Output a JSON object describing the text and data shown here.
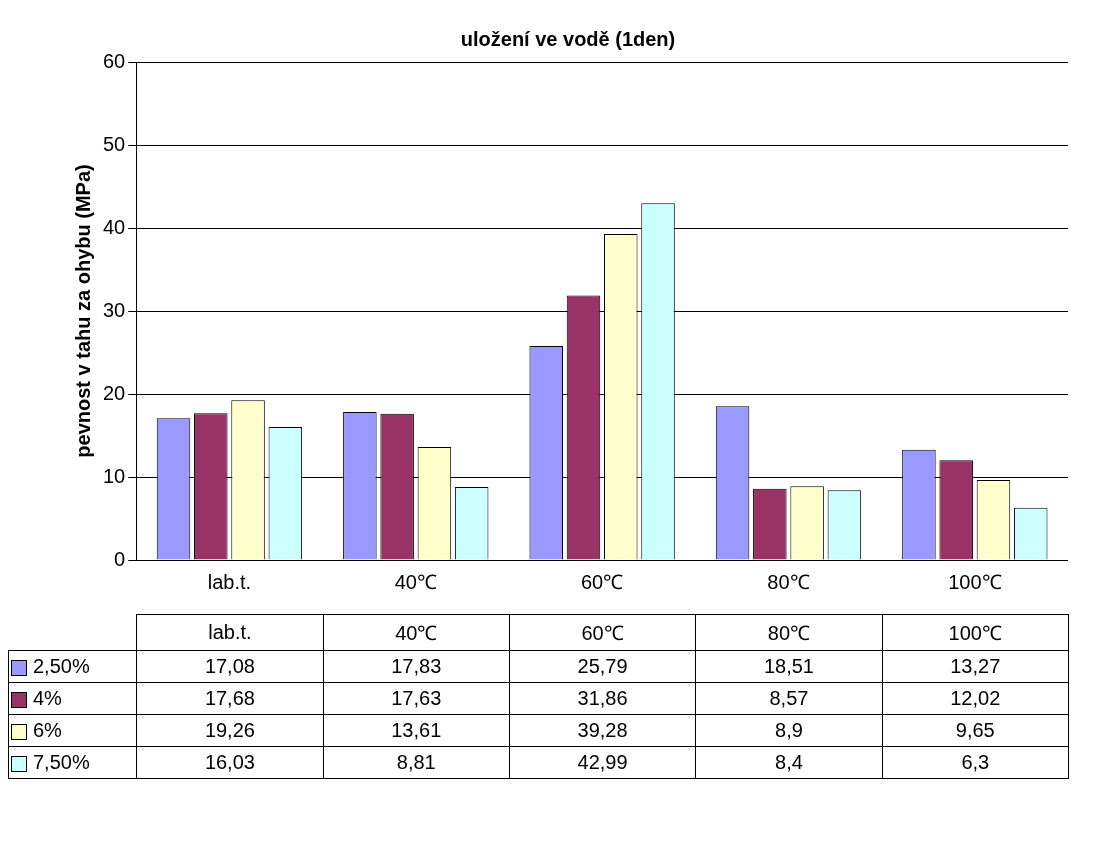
{
  "chart_data": {
    "type": "bar",
    "title": "uložení ve vodě (1den)",
    "ylabel": "pevnost v tahu za ohybu (MPa)",
    "categories": [
      "lab.t.",
      "40℃",
      "60℃",
      "80℃",
      "100℃"
    ],
    "series": [
      {
        "name": "2,50%",
        "color": "#9999ff",
        "values": [
          17.08,
          17.83,
          25.79,
          18.51,
          13.27
        ],
        "value_labels": [
          "17,08",
          "17,83",
          "25,79",
          "18,51",
          "13,27"
        ]
      },
      {
        "name": "4%",
        "color": "#993366",
        "values": [
          17.68,
          17.63,
          31.86,
          8.57,
          12.02
        ],
        "value_labels": [
          "17,68",
          "17,63",
          "31,86",
          "8,57",
          "12,02"
        ]
      },
      {
        "name": "6%",
        "color": "#ffffcc",
        "values": [
          19.26,
          13.61,
          39.28,
          8.9,
          9.65
        ],
        "value_labels": [
          "19,26",
          "13,61",
          "39,28",
          "8,9",
          "9,65"
        ]
      },
      {
        "name": "7,50%",
        "color": "#ccffff",
        "values": [
          16.03,
          8.81,
          42.99,
          8.4,
          6.3
        ],
        "value_labels": [
          "16,03",
          "8,81",
          "42,99",
          "8,4",
          "6,3"
        ]
      }
    ],
    "ylim": [
      0,
      60
    ],
    "yticks": [
      0,
      10,
      20,
      30,
      40,
      50,
      60
    ],
    "grid": "y",
    "legend": "bottom"
  }
}
